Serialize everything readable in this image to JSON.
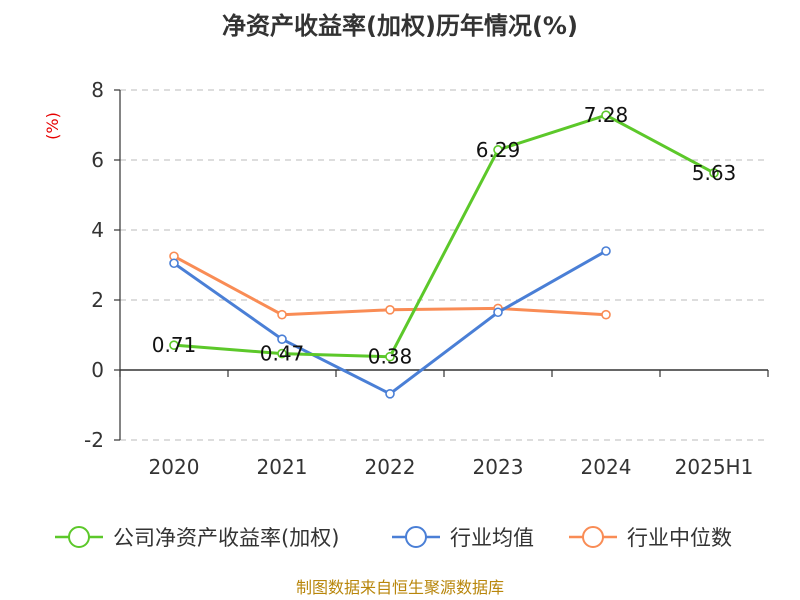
{
  "chart_data": {
    "type": "line",
    "title": "净资产收益率(加权)历年情况(%)",
    "ylabel": "(%)",
    "categories": [
      "2020",
      "2021",
      "2022",
      "2023",
      "2024",
      "2025H1"
    ],
    "ylim": [
      -2,
      8
    ],
    "yticks": [
      "-2",
      "0",
      "2",
      "4",
      "6",
      "8"
    ],
    "grid": true,
    "legend_position": "bottom",
    "series": [
      {
        "name": "公司净资产收益率(加权)",
        "color": "#5cc82a",
        "values": [
          0.71,
          0.47,
          0.38,
          6.29,
          7.28,
          5.63
        ],
        "labels": [
          "0.71",
          "0.47",
          "0.38",
          "6.29",
          "7.28",
          "5.63"
        ]
      },
      {
        "name": "行业均值",
        "color": "#4a7fd6",
        "values": [
          3.05,
          0.88,
          -0.68,
          1.65,
          3.4,
          null
        ]
      },
      {
        "name": "行业中位数",
        "color": "#f98c55",
        "values": [
          3.25,
          1.58,
          1.72,
          1.76,
          1.58,
          null
        ]
      }
    ]
  },
  "source": "制图数据来自恒生聚源数据库"
}
